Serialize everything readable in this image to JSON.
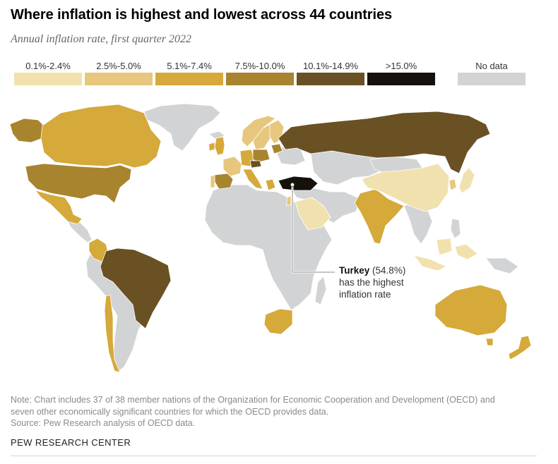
{
  "title": "Where inflation is highest and lowest across 44 countries",
  "subtitle": "Annual inflation rate, first quarter 2022",
  "colors": {
    "bin1": "#f1e1ae",
    "bin2": "#e6c77d",
    "bin3": "#d5a93a",
    "bin4": "#a8842f",
    "bin5": "#6a5124",
    "bin6": "#16120b",
    "nodata": "#d2d3d4"
  },
  "legend": [
    {
      "label": "0.1%-2.4%",
      "color_key": "bin1"
    },
    {
      "label": "2.5%-5.0%",
      "color_key": "bin2"
    },
    {
      "label": "5.1%-7.4%",
      "color_key": "bin3"
    },
    {
      "label": "7.5%-10.0%",
      "color_key": "bin4"
    },
    {
      "label": "10.1%-14.9%",
      "color_key": "bin5"
    },
    {
      "label": ">15.0%",
      "color_key": "bin6"
    },
    {
      "label": "No data",
      "color_key": "nodata"
    }
  ],
  "annotation": {
    "country": "Turkey",
    "value": "(54.8%)",
    "line2": "has the highest",
    "line3": "inflation rate"
  },
  "countries": [
    {
      "name": "Canada",
      "bin": "bin3"
    },
    {
      "name": "Alaska (United States)",
      "bin": "bin4"
    },
    {
      "name": "United States",
      "bin": "bin4"
    },
    {
      "name": "Mexico",
      "bin": "bin3"
    },
    {
      "name": "Colombia",
      "bin": "bin3"
    },
    {
      "name": "Brazil",
      "bin": "bin5"
    },
    {
      "name": "Chile",
      "bin": "bin3"
    },
    {
      "name": "United Kingdom",
      "bin": "bin3"
    },
    {
      "name": "Ireland",
      "bin": "bin3"
    },
    {
      "name": "Spain",
      "bin": "bin4"
    },
    {
      "name": "Portugal",
      "bin": "bin2"
    },
    {
      "name": "France",
      "bin": "bin2"
    },
    {
      "name": "Italy",
      "bin": "bin3"
    },
    {
      "name": "Germany",
      "bin": "bin3"
    },
    {
      "name": "Poland",
      "bin": "bin4"
    },
    {
      "name": "Czech Republic",
      "bin": "bin5"
    },
    {
      "name": "Norway",
      "bin": "bin2"
    },
    {
      "name": "Sweden",
      "bin": "bin2"
    },
    {
      "name": "Finland",
      "bin": "bin2"
    },
    {
      "name": "Baltic states",
      "bin": "bin4"
    },
    {
      "name": "Greece",
      "bin": "bin3"
    },
    {
      "name": "Russia",
      "bin": "bin5"
    },
    {
      "name": "Turkey",
      "bin": "bin6"
    },
    {
      "name": "Israel",
      "bin": "bin2"
    },
    {
      "name": "Saudi Arabia",
      "bin": "bin1"
    },
    {
      "name": "India",
      "bin": "bin3"
    },
    {
      "name": "China",
      "bin": "bin1"
    },
    {
      "name": "South Korea",
      "bin": "bin2"
    },
    {
      "name": "Japan",
      "bin": "bin1"
    },
    {
      "name": "Indonesia",
      "bin": "bin1"
    },
    {
      "name": "Australia",
      "bin": "bin3"
    },
    {
      "name": "New Zealand",
      "bin": "bin3"
    },
    {
      "name": "South Africa",
      "bin": "bin3"
    }
  ],
  "note": {
    "line1": "Note: Chart includes 37 of 38 member nations of the Organization for Economic Cooperation and Development (OECD) and",
    "line2": "seven other economically significant countries for which the OECD provides data.",
    "line3": "Source: Pew Research analysis of OECD data."
  },
  "brand": "PEW RESEARCH CENTER"
}
